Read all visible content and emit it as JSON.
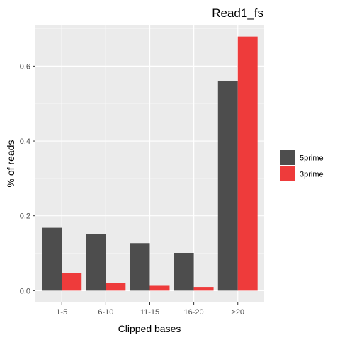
{
  "chart_data": {
    "type": "bar",
    "title": "Read1_fs",
    "xlabel": "Clipped bases",
    "ylabel": "% of reads",
    "categories": [
      "1-5",
      "6-10",
      "11-15",
      "16-20",
      ">20"
    ],
    "series": [
      {
        "name": "5prime",
        "color": "#4d4d4d",
        "values": [
          0.168,
          0.152,
          0.127,
          0.101,
          0.561
        ]
      },
      {
        "name": "3prime",
        "color": "#ee3b3b",
        "values": [
          0.047,
          0.021,
          0.013,
          0.01,
          0.679
        ]
      }
    ],
    "ylim": [
      -0.0315,
      0.7105
    ],
    "yticks": [
      0.0,
      0.2,
      0.4,
      0.6
    ],
    "ytick_labels": [
      "0.0",
      "0.2",
      "0.4",
      "0.6"
    ],
    "grid": true,
    "legend_position": "right",
    "panel_background": "#ebebeb"
  }
}
